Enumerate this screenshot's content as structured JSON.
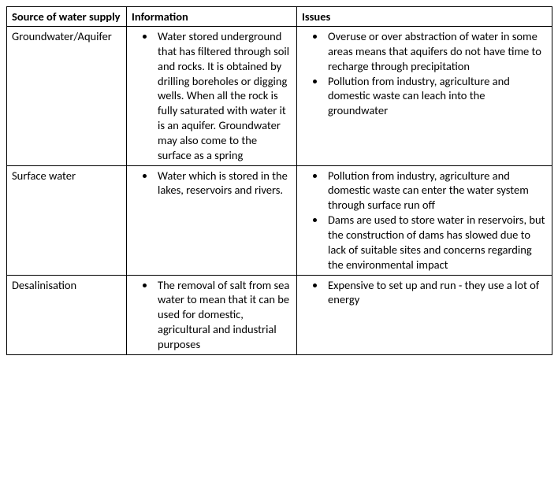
{
  "headers": {
    "source": "Source of water supply",
    "info": "Information",
    "issues": "Issues"
  },
  "rows": [
    {
      "source": "Groundwater/Aquifer",
      "info": [
        "Water stored underground that has filtered through soil and rocks. It is obtained by drilling boreholes or digging wells. When all the rock is fully saturated with water it is an aquifer. Groundwater may also come to the surface as a spring"
      ],
      "issues": [
        "Overuse or over abstraction of water in some areas means that aquifers do not have time to recharge through precipitation",
        "Pollution from industry, agriculture and domestic waste can leach into the groundwater"
      ]
    },
    {
      "source": "Surface water",
      "info": [
        "Water which is stored in the lakes, reservoirs and rivers."
      ],
      "issues": [
        "Pollution from industry, agriculture and domestic waste can enter the water system through surface run off",
        "Dams are used to store water in reservoirs, but the construction of dams has slowed due to lack of suitable sites and concerns regarding the environmental impact"
      ]
    },
    {
      "source": "Desalinisation",
      "info": [
        "The removal of salt from sea water to mean that it can be used for domestic, agricultural and industrial purposes"
      ],
      "issues": [
        "Expensive to set up and run - they use a lot of energy"
      ]
    }
  ]
}
